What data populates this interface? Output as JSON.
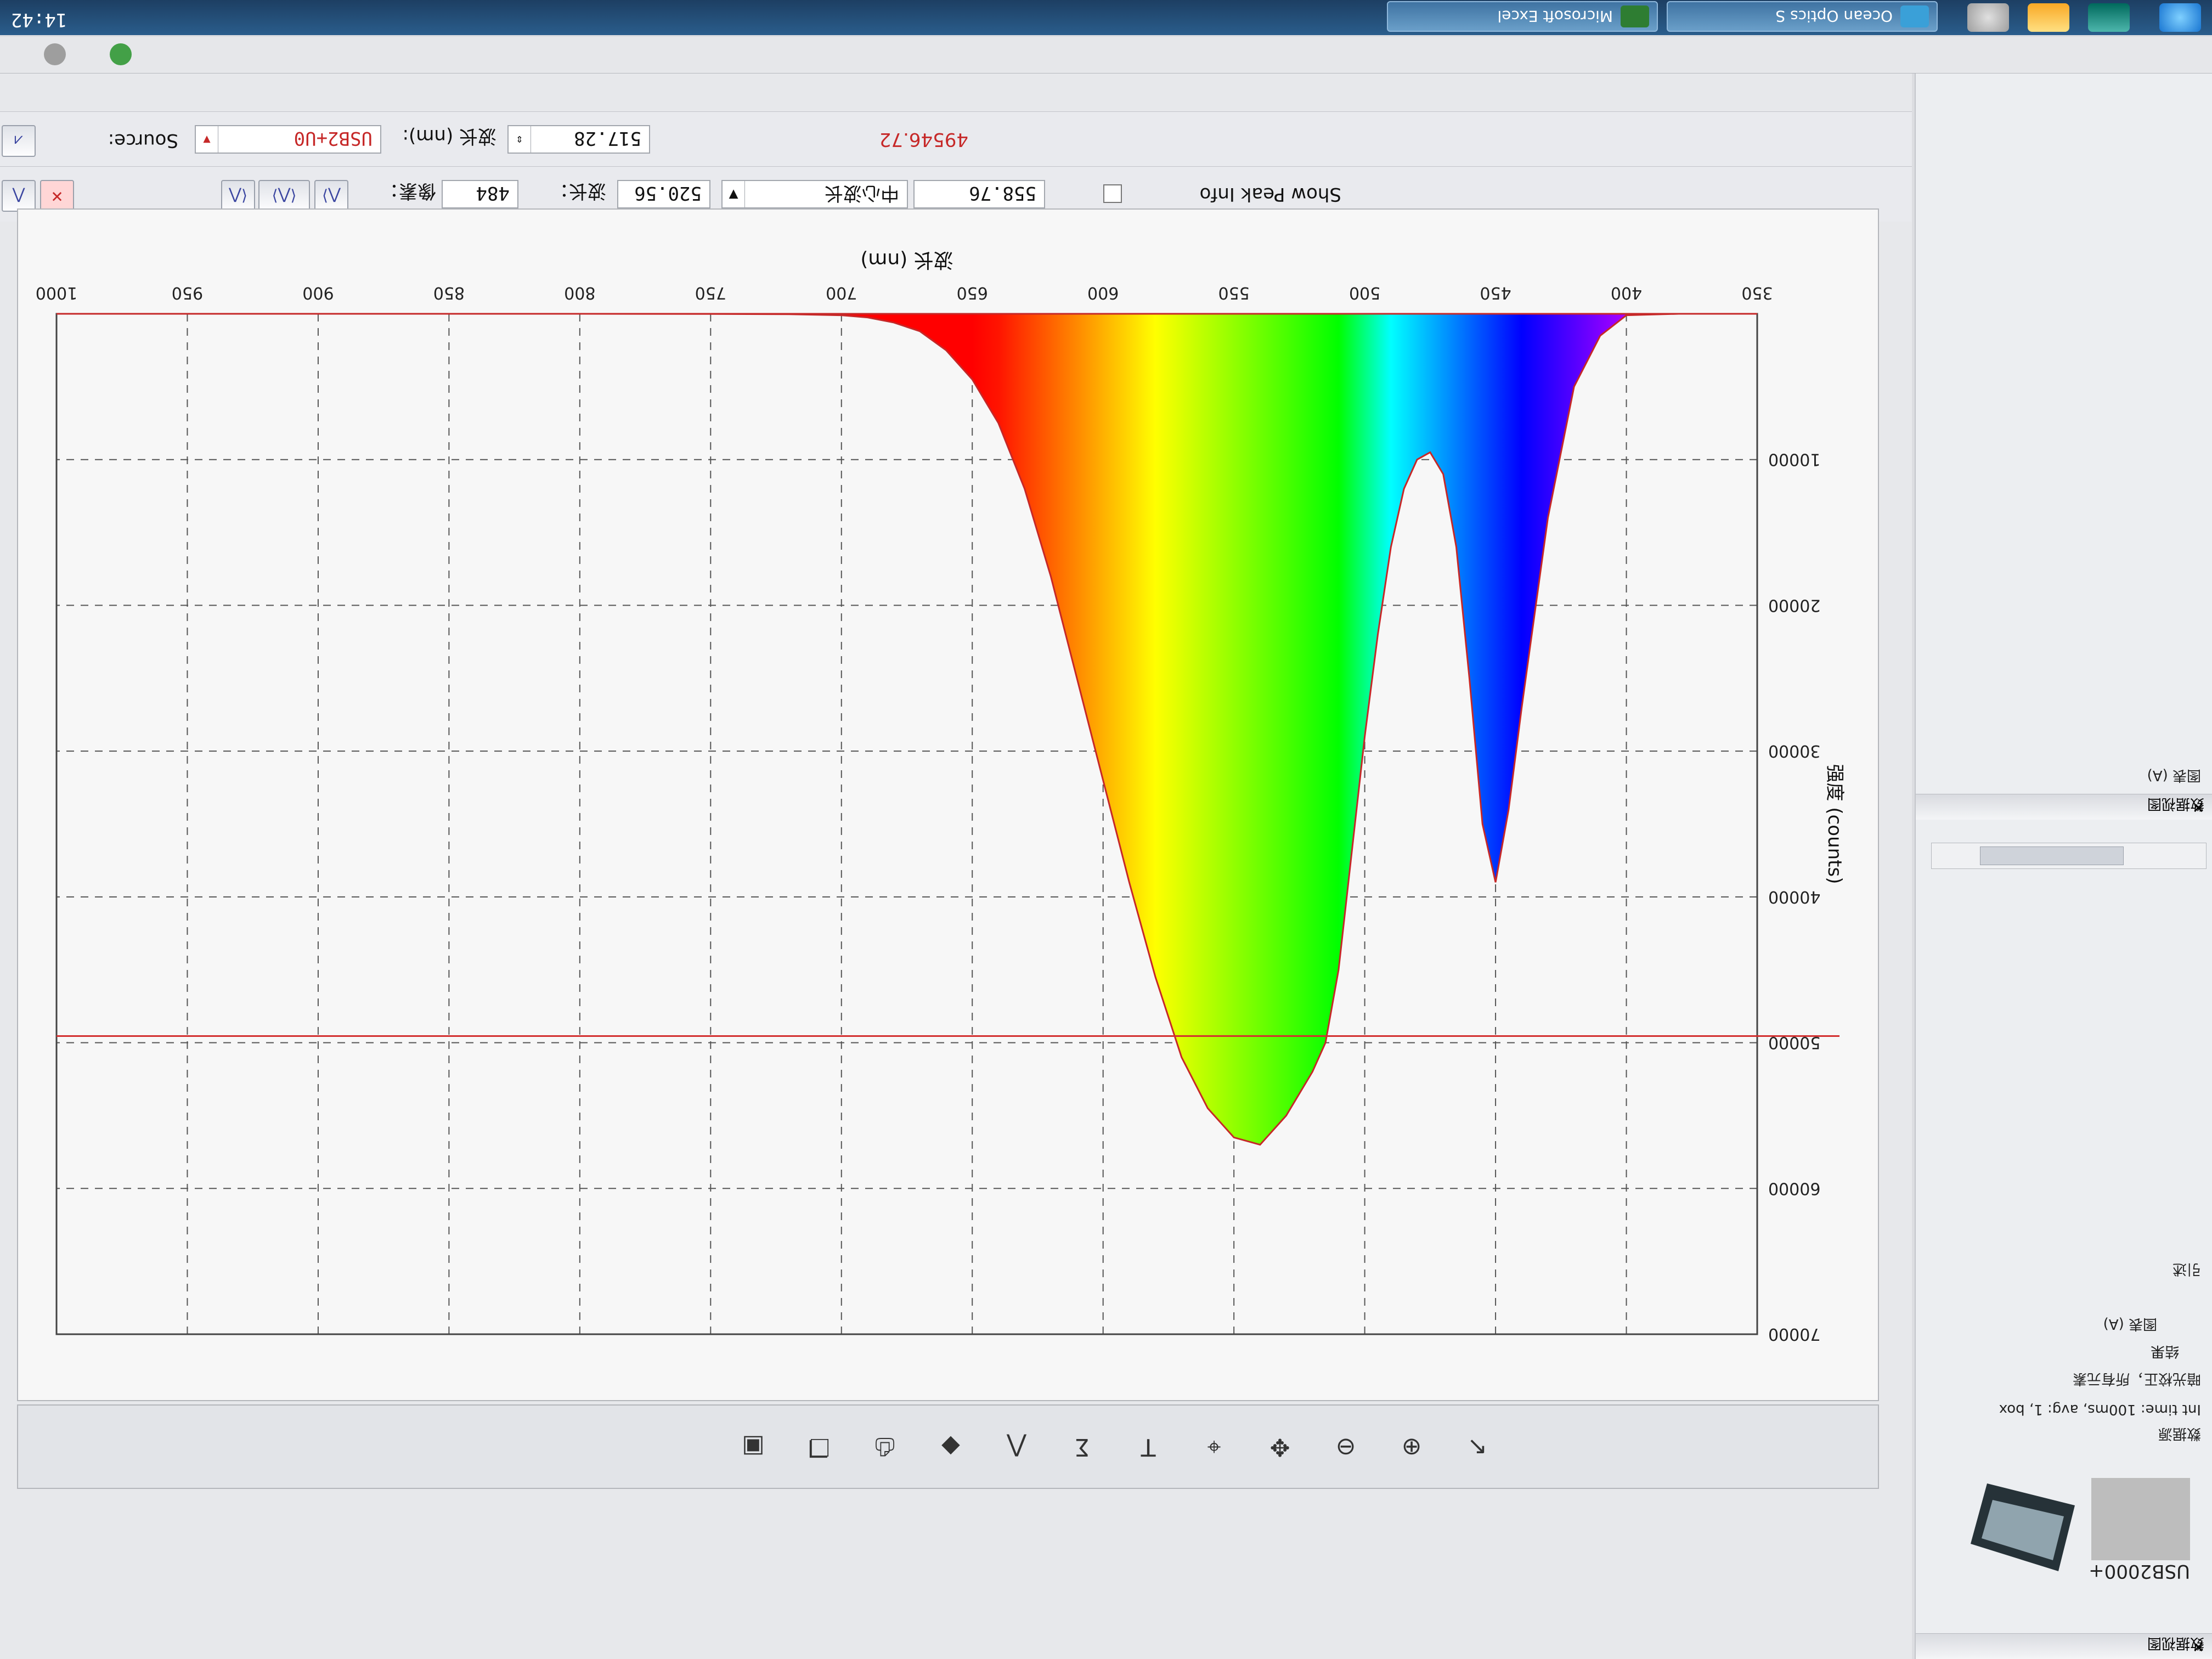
{
  "taskbar": {
    "clock": "14:42",
    "apps": [
      {
        "label": "Ocean Optics S",
        "color": "#3aa0d8"
      },
      {
        "label": "Microsoft Excel",
        "color": "#2e7d32"
      }
    ]
  },
  "side_panel": {
    "header_label": "数据视图",
    "device_label": "USB2000+",
    "tree": [
      "数据源",
      "Int time: 100ms, avg: 1, box",
      "暗光校正，所有元素",
      "结果",
      "图表 (A)",
      "引述"
    ],
    "bottom_section_label": "数据视图",
    "bottom_tree": [
      "图表 (A)"
    ]
  },
  "toolbar_top": {
    "source_label": "Source:",
    "source_value": "USB2+U0",
    "wavelength_label": "波长 (nm):",
    "wavelength_value": "517.28",
    "intensity_readout": "49546.72"
  },
  "toolbar_second": {
    "pixel_label": "像素：",
    "pixel_value": "484",
    "wavelength_label": "波长：",
    "wavelength_value": "520.56",
    "center_mode": "中心波长",
    "center_value": "558.76",
    "show_peak_label": "Show Peak Info"
  },
  "chart_data": {
    "type": "area",
    "xlabel": "波长 (nm)",
    "ylabel": "强度 (counts)",
    "xlim": [
      350,
      1000
    ],
    "ylim": [
      0,
      70000
    ],
    "x_ticks": [
      350,
      400,
      450,
      500,
      550,
      600,
      650,
      700,
      750,
      800,
      850,
      900,
      950,
      1000
    ],
    "y_ticks": [
      10000,
      20000,
      30000,
      40000,
      50000,
      60000,
      70000
    ],
    "grid": true,
    "cursor_line_y": 49546.72,
    "cursor_x": 520.56,
    "series": [
      {
        "x": [
          350,
          380,
          400,
          410,
          420,
          430,
          440,
          445,
          450,
          455,
          460,
          465,
          470,
          475,
          480,
          485,
          490,
          495,
          500,
          505,
          510,
          515,
          520,
          530,
          540,
          550,
          560,
          570,
          580,
          590,
          600,
          610,
          620,
          630,
          640,
          650,
          660,
          670,
          680,
          690,
          700,
          720,
          750,
          800,
          850,
          900,
          1000
        ],
        "y": [
          0,
          0,
          100,
          1500,
          5000,
          14000,
          27000,
          34000,
          39000,
          35000,
          25000,
          16000,
          11000,
          9500,
          10000,
          12000,
          16000,
          22000,
          29000,
          37000,
          45000,
          50000,
          52000,
          55000,
          57000,
          56500,
          54500,
          51000,
          45500,
          39000,
          32000,
          25000,
          18000,
          12000,
          7500,
          4500,
          2500,
          1200,
          600,
          250,
          100,
          30,
          10,
          0,
          0,
          0,
          0
        ]
      }
    ]
  },
  "bottom_toolbar_icons": [
    "pointer-icon",
    "zoom-in-icon",
    "zoom-out-icon",
    "pan-icon",
    "cursor-icon",
    "text-icon",
    "sigma-icon",
    "peak-icon",
    "marker-icon",
    "print-icon",
    "copy-icon",
    "save-icon"
  ],
  "colors": {
    "cursor_line": "#d32f2f",
    "background": "#f7f7f7"
  }
}
